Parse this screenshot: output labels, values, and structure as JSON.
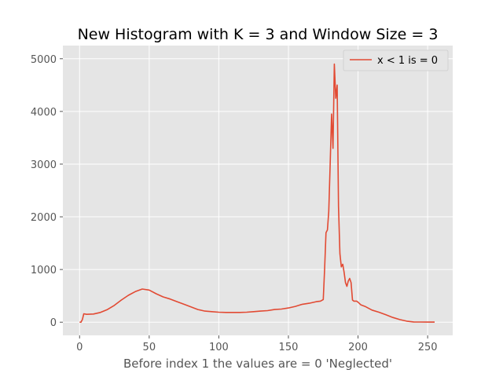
{
  "chart_data": {
    "type": "line",
    "title": "New Histogram with K = 3 and Window Size = 3",
    "xlabel": "Before index 1 the values are = 0 'Neglected'",
    "ylabel": "",
    "xlim": [
      -12,
      268
    ],
    "ylim": [
      -250,
      5250
    ],
    "xticks": [
      0,
      50,
      100,
      150,
      200,
      250
    ],
    "yticks": [
      0,
      1000,
      2000,
      3000,
      4000,
      5000
    ],
    "grid": true,
    "legend_position": "top-right",
    "colors": {
      "line": "#E24A33",
      "axes_bg": "#E5E5E5",
      "grid": "#FFFFFF"
    },
    "series": [
      {
        "name": "x < 1 is = 0",
        "x": [
          0,
          1,
          2,
          3,
          5,
          10,
          15,
          20,
          25,
          30,
          35,
          40,
          45,
          50,
          55,
          60,
          65,
          70,
          75,
          80,
          85,
          90,
          95,
          100,
          105,
          110,
          115,
          120,
          125,
          130,
          135,
          140,
          145,
          150,
          155,
          160,
          165,
          170,
          173,
          175,
          176,
          177,
          178,
          179,
          180,
          181,
          182,
          183,
          184,
          185,
          186,
          187,
          188,
          189,
          190,
          191,
          192,
          193,
          194,
          195,
          196,
          197,
          198,
          199,
          200,
          202,
          205,
          210,
          215,
          220,
          225,
          230,
          235,
          240,
          245,
          250,
          255
        ],
        "values": [
          0,
          0,
          50,
          160,
          150,
          155,
          185,
          240,
          320,
          420,
          510,
          580,
          630,
          610,
          540,
          480,
          440,
          390,
          340,
          290,
          240,
          210,
          200,
          190,
          185,
          185,
          185,
          190,
          200,
          210,
          220,
          240,
          250,
          270,
          300,
          340,
          360,
          390,
          400,
          430,
          1000,
          1700,
          1750,
          2100,
          3000,
          3950,
          3300,
          4900,
          4250,
          4500,
          2200,
          1300,
          1050,
          1100,
          950,
          750,
          680,
          780,
          830,
          750,
          420,
          400,
          400,
          400,
          380,
          330,
          300,
          230,
          190,
          140,
          90,
          50,
          20,
          5,
          3,
          2,
          2
        ]
      }
    ]
  }
}
